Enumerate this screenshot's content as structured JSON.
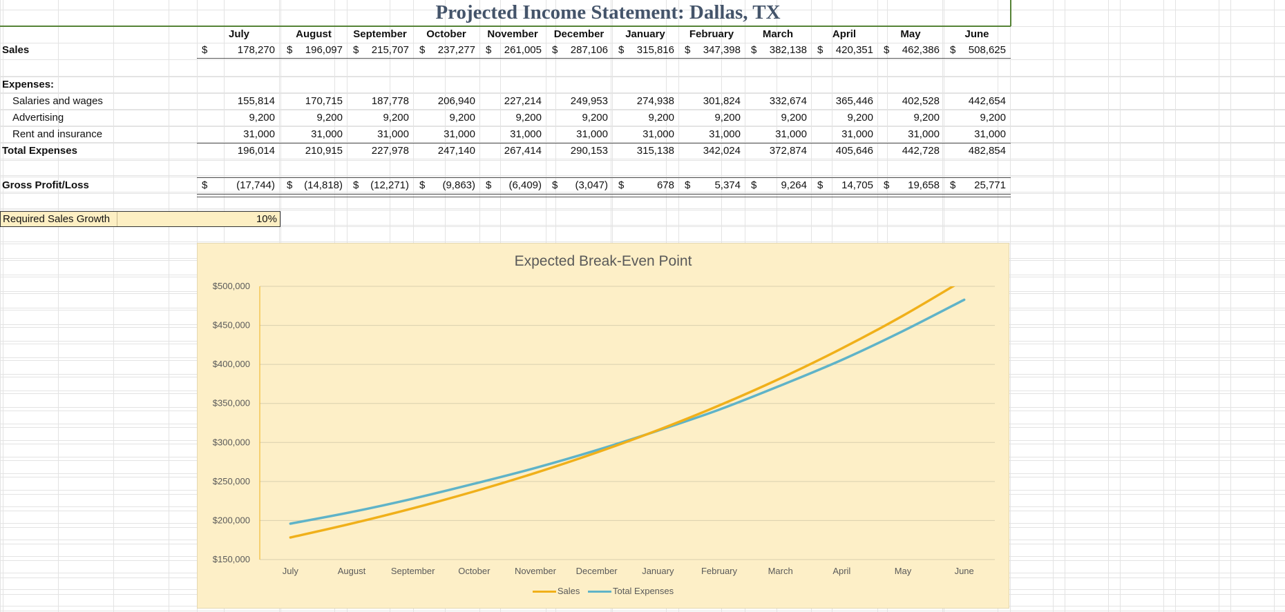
{
  "title": "Projected Income Statement: Dallas, TX",
  "months": [
    "July",
    "August",
    "September",
    "October",
    "November",
    "December",
    "January",
    "February",
    "March",
    "April",
    "May",
    "June"
  ],
  "rows": {
    "sales": {
      "label": "Sales",
      "currency": "$",
      "values": [
        "178,270",
        "196,097",
        "215,707",
        "237,277",
        "261,005",
        "287,106",
        "315,816",
        "347,398",
        "382,138",
        "420,351",
        "462,386",
        "508,625"
      ]
    },
    "expenses_header": "Expenses:",
    "salaries": {
      "label": "Salaries and wages",
      "values": [
        "155,814",
        "170,715",
        "187,778",
        "206,940",
        "227,214",
        "249,953",
        "274,938",
        "301,824",
        "332,674",
        "365,446",
        "402,528",
        "442,654"
      ]
    },
    "advertising": {
      "label": "Advertising",
      "values": [
        "9,200",
        "9,200",
        "9,200",
        "9,200",
        "9,200",
        "9,200",
        "9,200",
        "9,200",
        "9,200",
        "9,200",
        "9,200",
        "9,200"
      ]
    },
    "rent": {
      "label": "Rent and insurance",
      "values": [
        "31,000",
        "31,000",
        "31,000",
        "31,000",
        "31,000",
        "31,000",
        "31,000",
        "31,000",
        "31,000",
        "31,000",
        "31,000",
        "31,000"
      ]
    },
    "total": {
      "label": "Total Expenses",
      "values": [
        "196,014",
        "210,915",
        "227,978",
        "247,140",
        "267,414",
        "290,153",
        "315,138",
        "342,024",
        "372,874",
        "405,646",
        "442,728",
        "482,854"
      ]
    },
    "gross": {
      "label": "Gross Profit/Loss",
      "currency": "$",
      "values": [
        "(17,744)",
        "(14,818)",
        "(12,271)",
        "(9,863)",
        "(6,409)",
        "(3,047)",
        "678",
        "5,374",
        "9,264",
        "14,705",
        "19,658",
        "25,771"
      ]
    }
  },
  "growth": {
    "label": "Required Sales Growth",
    "value": "10%"
  },
  "chart_data": {
    "type": "line",
    "title": "Expected Break-Even Point",
    "categories": [
      "July",
      "August",
      "September",
      "October",
      "November",
      "December",
      "January",
      "February",
      "March",
      "April",
      "May",
      "June"
    ],
    "series": [
      {
        "name": "Sales",
        "color": "#f0b01a",
        "values": [
          178270,
          196097,
          215707,
          237277,
          261005,
          287106,
          315816,
          347398,
          382138,
          420351,
          462386,
          508625
        ]
      },
      {
        "name": "Total Expenses",
        "color": "#5fb3c8",
        "values": [
          196014,
          210915,
          227978,
          247140,
          267414,
          290153,
          315138,
          342024,
          372874,
          405646,
          442728,
          482854
        ]
      }
    ],
    "ylim": [
      150000,
      500000
    ],
    "yticks": [
      150000,
      200000,
      250000,
      300000,
      350000,
      400000,
      450000,
      500000
    ],
    "ytick_labels": [
      "$150,000",
      "$200,000",
      "$250,000",
      "$300,000",
      "$350,000",
      "$400,000",
      "$450,000",
      "$500,000"
    ],
    "grid": true,
    "legend": "bottom"
  }
}
